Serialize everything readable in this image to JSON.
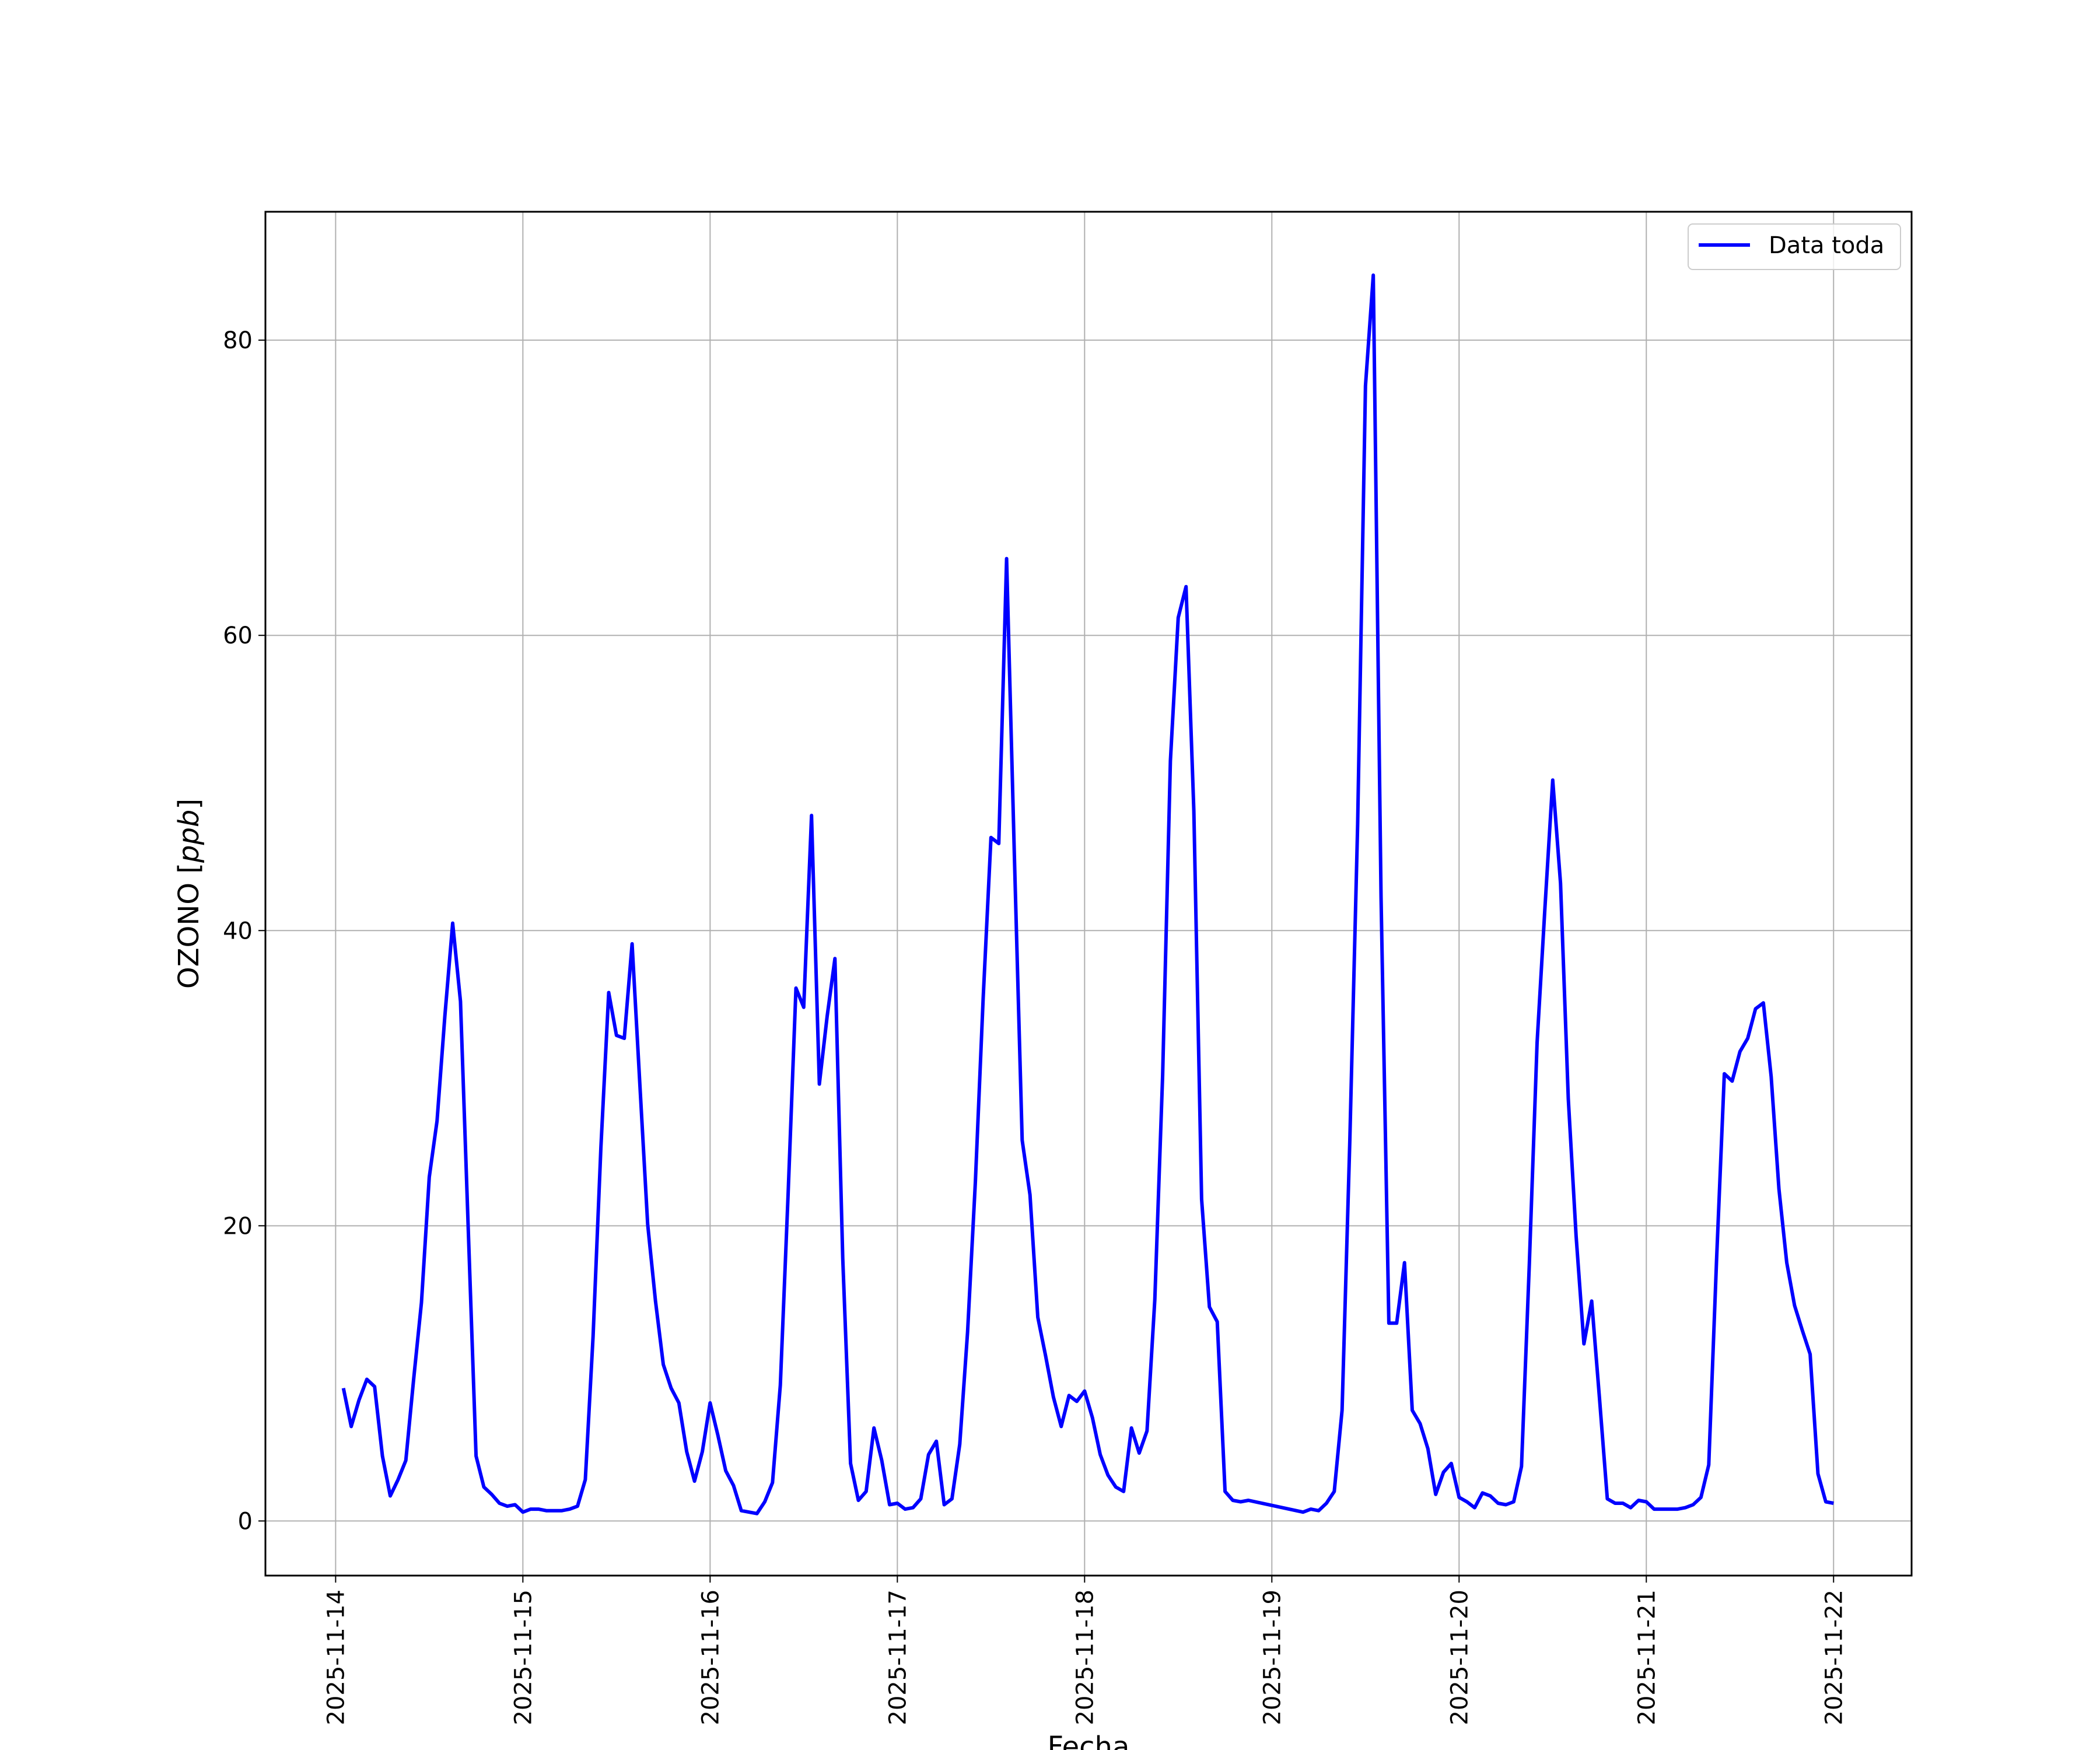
{
  "chart_data": {
    "type": "line",
    "title": "",
    "xlabel": "Fecha",
    "ylabel_main": "OZONO [",
    "ylabel_unit": "ppb",
    "ylabel_close": "]",
    "xlim": [
      "2025-11-13 15:00",
      "2025-11-22 10:00"
    ],
    "ylim": [
      -3.7,
      88.7
    ],
    "grid": true,
    "legend_position": "upper-right",
    "x_ticks": [
      "2025-11-14",
      "2025-11-15",
      "2025-11-16",
      "2025-11-17",
      "2025-11-18",
      "2025-11-19",
      "2025-11-20",
      "2025-11-21",
      "2025-11-22"
    ],
    "y_ticks": [
      0,
      20,
      40,
      60,
      80
    ],
    "series": [
      {
        "name": "Data toda",
        "color": "#0000ff",
        "x": [
          "2025-11-14 01:00",
          "2025-11-14 02:00",
          "2025-11-14 03:00",
          "2025-11-14 04:00",
          "2025-11-14 05:00",
          "2025-11-14 06:00",
          "2025-11-14 07:00",
          "2025-11-14 08:00",
          "2025-11-14 09:00",
          "2025-11-14 10:00",
          "2025-11-14 11:00",
          "2025-11-14 12:00",
          "2025-11-14 13:00",
          "2025-11-14 14:00",
          "2025-11-14 15:00",
          "2025-11-14 16:00",
          "2025-11-14 17:00",
          "2025-11-14 18:00",
          "2025-11-14 19:00",
          "2025-11-14 20:00",
          "2025-11-14 21:00",
          "2025-11-14 22:00",
          "2025-11-14 23:00",
          "2025-11-15 00:00",
          "2025-11-15 01:00",
          "2025-11-15 02:00",
          "2025-11-15 03:00",
          "2025-11-15 04:00",
          "2025-11-15 05:00",
          "2025-11-15 06:00",
          "2025-11-15 07:00",
          "2025-11-15 08:00",
          "2025-11-15 09:00",
          "2025-11-15 10:00",
          "2025-11-15 11:00",
          "2025-11-15 12:00",
          "2025-11-15 13:00",
          "2025-11-15 14:00",
          "2025-11-15 15:00",
          "2025-11-15 16:00",
          "2025-11-15 17:00",
          "2025-11-15 18:00",
          "2025-11-15 19:00",
          "2025-11-15 20:00",
          "2025-11-15 21:00",
          "2025-11-15 22:00",
          "2025-11-15 23:00",
          "2025-11-16 00:00",
          "2025-11-16 01:00",
          "2025-11-16 02:00",
          "2025-11-16 03:00",
          "2025-11-16 04:00",
          "2025-11-16 05:00",
          "2025-11-16 06:00",
          "2025-11-16 07:00",
          "2025-11-16 08:00",
          "2025-11-16 09:00",
          "2025-11-16 10:00",
          "2025-11-16 11:00",
          "2025-11-16 12:00",
          "2025-11-16 13:00",
          "2025-11-16 14:00",
          "2025-11-16 15:00",
          "2025-11-16 16:00",
          "2025-11-16 17:00",
          "2025-11-16 18:00",
          "2025-11-16 19:00",
          "2025-11-16 20:00",
          "2025-11-16 21:00",
          "2025-11-16 22:00",
          "2025-11-16 23:00",
          "2025-11-17 00:00",
          "2025-11-17 01:00",
          "2025-11-17 02:00",
          "2025-11-17 03:00",
          "2025-11-17 04:00",
          "2025-11-17 05:00",
          "2025-11-17 06:00",
          "2025-11-17 07:00",
          "2025-11-17 08:00",
          "2025-11-17 09:00",
          "2025-11-17 10:00",
          "2025-11-17 11:00",
          "2025-11-17 12:00",
          "2025-11-17 13:00",
          "2025-11-17 14:00",
          "2025-11-17 15:00",
          "2025-11-17 16:00",
          "2025-11-17 17:00",
          "2025-11-17 18:00",
          "2025-11-17 19:00",
          "2025-11-17 20:00",
          "2025-11-17 21:00",
          "2025-11-17 22:00",
          "2025-11-17 23:00",
          "2025-11-18 00:00",
          "2025-11-18 01:00",
          "2025-11-18 02:00",
          "2025-11-18 03:00",
          "2025-11-18 04:00",
          "2025-11-18 05:00",
          "2025-11-18 06:00",
          "2025-11-18 07:00",
          "2025-11-18 08:00",
          "2025-11-18 09:00",
          "2025-11-18 10:00",
          "2025-11-18 11:00",
          "2025-11-18 12:00",
          "2025-11-18 13:00",
          "2025-11-18 14:00",
          "2025-11-18 15:00",
          "2025-11-18 16:00",
          "2025-11-18 17:00",
          "2025-11-18 18:00",
          "2025-11-18 19:00",
          "2025-11-18 20:00",
          "2025-11-18 21:00",
          "2025-11-19 04:00",
          "2025-11-19 05:00",
          "2025-11-19 06:00",
          "2025-11-19 07:00",
          "2025-11-19 08:00",
          "2025-11-19 09:00",
          "2025-11-19 10:00",
          "2025-11-19 11:00",
          "2025-11-19 12:00",
          "2025-11-19 13:00",
          "2025-11-19 14:00",
          "2025-11-19 15:00",
          "2025-11-19 16:00",
          "2025-11-19 17:00",
          "2025-11-19 18:00",
          "2025-11-19 19:00",
          "2025-11-19 20:00",
          "2025-11-19 21:00",
          "2025-11-19 22:00",
          "2025-11-19 23:00",
          "2025-11-20 00:00",
          "2025-11-20 01:00",
          "2025-11-20 02:00",
          "2025-11-20 03:00",
          "2025-11-20 04:00",
          "2025-11-20 05:00",
          "2025-11-20 06:00",
          "2025-11-20 07:00",
          "2025-11-20 08:00",
          "2025-11-20 09:00",
          "2025-11-20 10:00",
          "2025-11-20 11:00",
          "2025-11-20 12:00",
          "2025-11-20 13:00",
          "2025-11-20 14:00",
          "2025-11-20 15:00",
          "2025-11-20 16:00",
          "2025-11-20 17:00",
          "2025-11-20 18:00",
          "2025-11-20 19:00",
          "2025-11-20 20:00",
          "2025-11-20 21:00",
          "2025-11-20 22:00",
          "2025-11-20 23:00",
          "2025-11-21 00:00",
          "2025-11-21 01:00",
          "2025-11-21 02:00",
          "2025-11-21 03:00",
          "2025-11-21 04:00",
          "2025-11-21 05:00",
          "2025-11-21 06:00",
          "2025-11-21 07:00",
          "2025-11-21 08:00",
          "2025-11-21 09:00",
          "2025-11-21 10:00",
          "2025-11-21 11:00",
          "2025-11-21 12:00",
          "2025-11-21 13:00",
          "2025-11-21 14:00",
          "2025-11-21 15:00",
          "2025-11-21 16:00",
          "2025-11-21 17:00",
          "2025-11-21 18:00",
          "2025-11-21 19:00",
          "2025-11-21 20:00",
          "2025-11-21 21:00",
          "2025-11-21 22:00",
          "2025-11-21 23:00",
          "2025-11-22 00:00"
        ],
        "values": [
          9.0,
          6.4,
          8.2,
          9.6,
          9.1,
          4.4,
          1.7,
          2.8,
          4.1,
          9.6,
          14.8,
          23.3,
          27.1,
          34.2,
          40.5,
          35.2,
          19.8,
          4.4,
          2.3,
          1.8,
          1.2,
          1.0,
          1.1,
          0.6,
          0.8,
          0.8,
          0.7,
          0.7,
          0.7,
          0.8,
          1.0,
          2.8,
          12.5,
          25.3,
          35.8,
          32.9,
          32.7,
          39.1,
          29.5,
          20.1,
          14.9,
          10.6,
          9.0,
          8.0,
          4.7,
          2.7,
          4.7,
          8.0,
          5.8,
          3.4,
          2.4,
          0.7,
          0.6,
          0.5,
          1.3,
          2.6,
          9.2,
          22.2,
          36.1,
          34.8,
          47.8,
          29.6,
          34.2,
          38.1,
          17.8,
          3.9,
          1.4,
          2.0,
          6.3,
          4.1,
          1.1,
          1.2,
          0.8,
          0.9,
          1.5,
          4.5,
          5.4,
          1.1,
          1.5,
          5.2,
          12.8,
          23.0,
          35.4,
          46.3,
          45.9,
          65.2,
          45.1,
          25.8,
          22.1,
          13.8,
          11.2,
          8.4,
          6.4,
          8.5,
          8.1,
          8.8,
          7.0,
          4.5,
          3.1,
          2.3,
          2.0,
          6.3,
          4.6,
          6.1,
          15.0,
          30.2,
          51.5,
          61.2,
          63.3,
          48.1,
          21.8,
          14.5,
          13.5,
          2.0,
          1.4,
          1.3,
          1.4,
          0.6,
          0.8,
          0.7,
          1.2,
          2.0,
          7.5,
          25.8,
          47.2,
          76.9,
          84.4,
          42.3,
          13.4,
          13.4,
          17.5,
          7.5,
          6.6,
          4.9,
          1.8,
          3.3,
          3.9,
          1.6,
          1.3,
          0.9,
          1.9,
          1.7,
          1.2,
          1.1,
          1.3,
          3.7,
          17.4,
          32.4,
          41.5,
          50.2,
          43.2,
          28.6,
          19.3,
          12.0,
          14.9,
          8.3,
          1.5,
          1.2,
          1.2,
          0.9,
          1.4,
          1.3,
          0.8,
          0.8,
          0.8,
          0.8,
          0.9,
          1.1,
          1.6,
          3.8,
          17.6,
          30.3,
          29.8,
          31.8,
          32.7,
          34.7,
          35.1,
          30.1,
          22.5,
          17.5,
          14.6,
          12.9,
          11.3,
          3.2,
          1.3,
          1.2
        ]
      }
    ]
  }
}
